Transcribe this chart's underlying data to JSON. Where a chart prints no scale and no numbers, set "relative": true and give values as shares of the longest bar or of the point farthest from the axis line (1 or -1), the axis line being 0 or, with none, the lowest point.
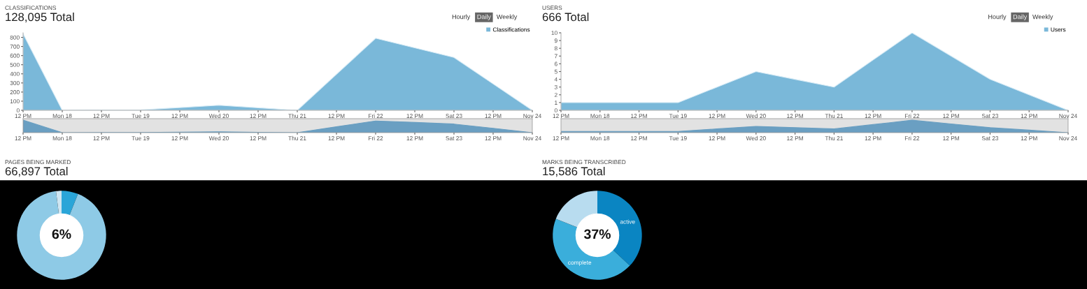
{
  "chart_data": [
    {
      "type": "area",
      "title": "CLASSIFICATIONS",
      "subtitle": "128,095 Total",
      "annotations": [
        "Hourly",
        "Daily",
        "Weekly"
      ],
      "legend": "top right",
      "categories": [
        "12 PM",
        "Mon 18",
        "12 PM",
        "Tue 19",
        "12 PM",
        "Wed 20",
        "12 PM",
        "Thu 21",
        "12 PM",
        "Fri 22",
        "12 PM",
        "Sat 23",
        "12 PM",
        "Nov 24"
      ],
      "series": [
        {
          "name": "Classifications",
          "color": "#7ab8d9",
          "values": [
            840,
            0,
            3,
            5,
            30,
            55,
            28,
            0,
            395,
            790,
            685,
            580,
            290,
            0
          ]
        }
      ],
      "ylim": [
        0,
        850
      ],
      "yticks": [
        0,
        100,
        200,
        300,
        400,
        500,
        600,
        700,
        800
      ]
    },
    {
      "type": "area",
      "relative": true,
      "tick_labels": "x",
      "categories": [
        "12 PM",
        "Mon 18",
        "12 PM",
        "Tue 19",
        "12 PM",
        "Wed 20",
        "12 PM",
        "Thu 21",
        "12 PM",
        "Fri 22",
        "12 PM",
        "Sat 23",
        "12 PM",
        "Nov 24"
      ],
      "series": [
        {
          "color": "#6a9fc2",
          "values": [
            1,
            0,
            0.004,
            0.006,
            0.04,
            0.065,
            0.03,
            0,
            0.47,
            0.94,
            0.82,
            0.69,
            0.35,
            0
          ]
        }
      ]
    },
    {
      "type": "area",
      "title": "USERS",
      "subtitle": "666 Total",
      "annotations": [
        "Hourly",
        "Daily",
        "Weekly"
      ],
      "legend": "top right",
      "categories": [
        "12 PM",
        "Mon 18",
        "12 PM",
        "Tue 19",
        "12 PM",
        "Wed 20",
        "12 PM",
        "Thu 21",
        "12 PM",
        "Fri 22",
        "12 PM",
        "Sat 23",
        "12 PM",
        "Nov 24"
      ],
      "series": [
        {
          "name": "Users",
          "color": "#7ab8d9",
          "values": [
            1,
            1,
            1,
            1,
            3,
            5,
            4,
            3,
            6.5,
            10,
            7,
            4,
            2,
            0
          ]
        }
      ],
      "ylim": [
        0,
        10
      ],
      "yticks": [
        0,
        1,
        2,
        3,
        4,
        5,
        6,
        7,
        8,
        9,
        10
      ]
    },
    {
      "type": "area",
      "relative": true,
      "tick_labels": "x",
      "categories": [
        "12 PM",
        "Mon 18",
        "12 PM",
        "Tue 19",
        "12 PM",
        "Wed 20",
        "12 PM",
        "Thu 21",
        "12 PM",
        "Fri 22",
        "12 PM",
        "Sat 23",
        "12 PM",
        "Nov 24"
      ],
      "series": [
        {
          "color": "#6a9fc2",
          "values": [
            0.1,
            0.1,
            0.1,
            0.1,
            0.3,
            0.5,
            0.4,
            0.3,
            0.65,
            1,
            0.7,
            0.4,
            0.2,
            0
          ]
        }
      ]
    },
    {
      "type": "donut",
      "title": "PAGES BEING MARKED",
      "subtitle": "66,897 Total",
      "annotations": [
        "6%"
      ],
      "categories": [
        null,
        null,
        null
      ],
      "values": [
        6,
        92,
        2
      ],
      "colors": [
        "#2aa5d8",
        "#8ecae6",
        "#cfe6f2"
      ]
    },
    {
      "type": "donut",
      "title": "MARKS BEING TRANSCRIBED",
      "subtitle": "15,586 Total",
      "annotations": [
        "37%"
      ],
      "categories": [
        "active",
        "complete",
        null
      ],
      "values": [
        37,
        44,
        19
      ],
      "colors": [
        "#0a85c2",
        "#3aaedb",
        "#b8dcef"
      ]
    }
  ]
}
